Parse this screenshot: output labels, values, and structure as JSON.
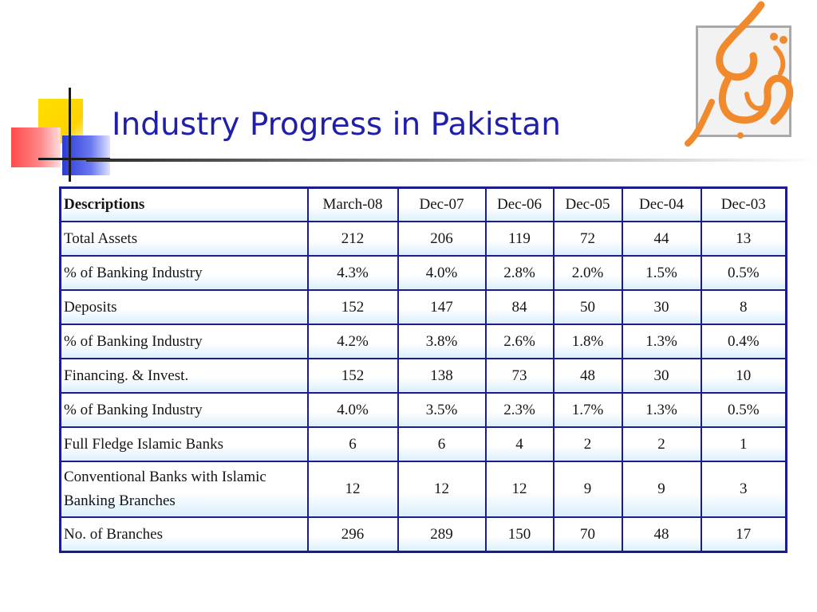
{
  "slide": {
    "title": "Industry Progress in Pakistan",
    "logo_text": "الهدى"
  },
  "table": {
    "headers": [
      "Descriptions",
      "March-08",
      "Dec-07",
      "Dec-06",
      "Dec-05",
      "Dec-04",
      "Dec-03"
    ],
    "rows": [
      [
        "Total Assets",
        "212",
        "206",
        "119",
        "72",
        "44",
        "13"
      ],
      [
        "% of Banking Industry",
        "4.3%",
        "4.0%",
        "2.8%",
        "2.0%",
        "1.5%",
        "0.5%"
      ],
      [
        "Deposits",
        "152",
        "147",
        "84",
        "50",
        "30",
        "8"
      ],
      [
        "% of Banking Industry",
        "4.2%",
        "3.8%",
        "2.6%",
        "1.8%",
        "1.3%",
        "0.4%"
      ],
      [
        "Financing. & Invest.",
        "152",
        "138",
        "73",
        "48",
        "30",
        "10"
      ],
      [
        "% of Banking Industry",
        "4.0%",
        "3.5%",
        "2.3%",
        "1.7%",
        "1.3%",
        "0.5%"
      ],
      [
        "Full Fledge Islamic Banks",
        "6",
        "6",
        "4",
        "2",
        "2",
        "1"
      ],
      [
        "Conventional Banks with Islamic Banking Branches",
        "12",
        "12",
        "12",
        "9",
        "9",
        "3"
      ],
      [
        "No. of Branches",
        "296",
        "289",
        "150",
        "70",
        "48",
        "17"
      ]
    ]
  },
  "colors": {
    "title": "#1f1faa",
    "table_border": "#1c1c8c",
    "logo_orange": "#f08a2c"
  }
}
